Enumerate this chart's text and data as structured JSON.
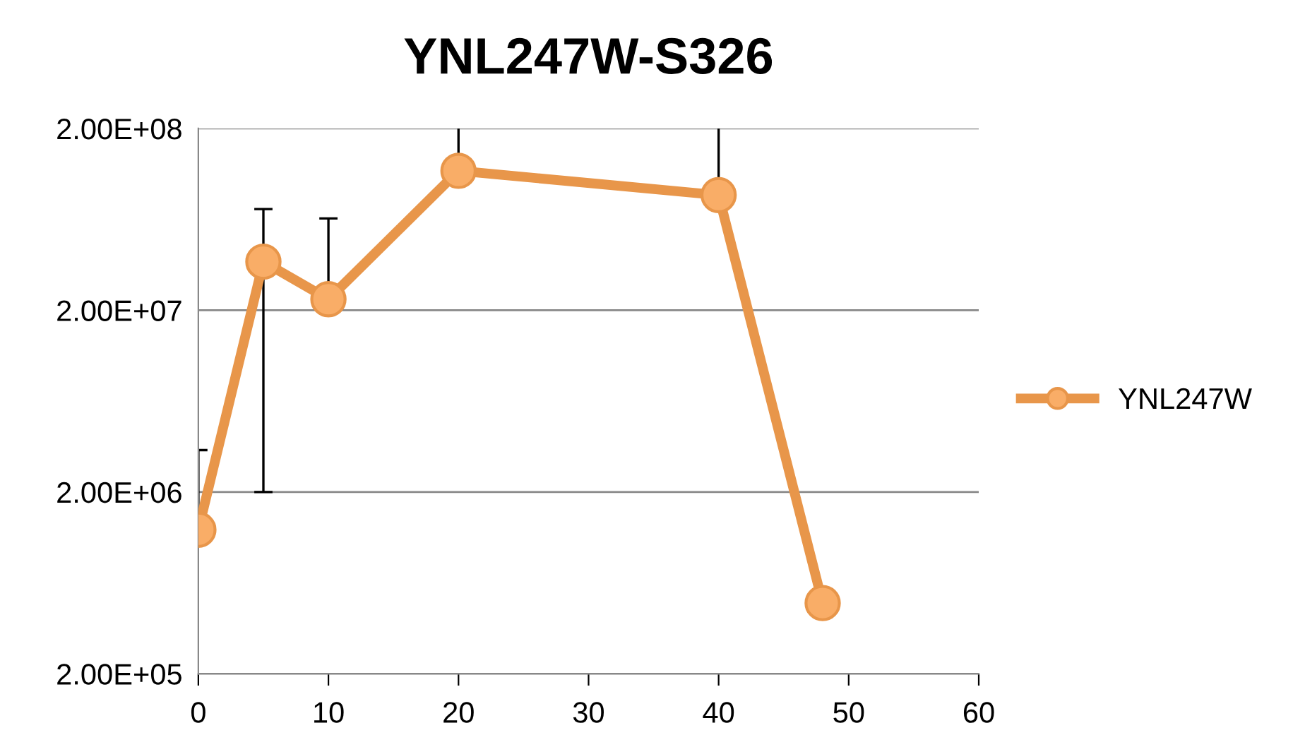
{
  "chart_data": {
    "type": "line",
    "title": "YNL247W-S326",
    "x": [
      0,
      5,
      10,
      20,
      40,
      48
    ],
    "series": [
      {
        "name": "YNL247W",
        "color": "#e8964a",
        "values": [
          1240000,
          37000000,
          23000000,
          117000000,
          86000000,
          490000
        ],
        "errors": [
          [
            1240000,
            3400000
          ],
          [
            2000000,
            72000000
          ],
          [
            23000000,
            64000000
          ],
          [
            117000000,
            200000000
          ],
          [
            86000000,
            200000000
          ],
          null
        ]
      }
    ],
    "log": true,
    "ylim": [
      200000,
      200000000
    ],
    "yticks": [
      {
        "value": 200000,
        "label": "2.00E+05"
      },
      {
        "value": 2000000,
        "label": "2.00E+06"
      },
      {
        "value": 20000000,
        "label": "2.00E+07"
      },
      {
        "value": 200000000,
        "label": "2.00E+08"
      }
    ],
    "xlim": [
      0,
      60
    ],
    "xticks": [
      0,
      10,
      20,
      30,
      40,
      50,
      60
    ],
    "grid": "y",
    "legend": "right",
    "marker": "circle",
    "line_style": "solid"
  }
}
